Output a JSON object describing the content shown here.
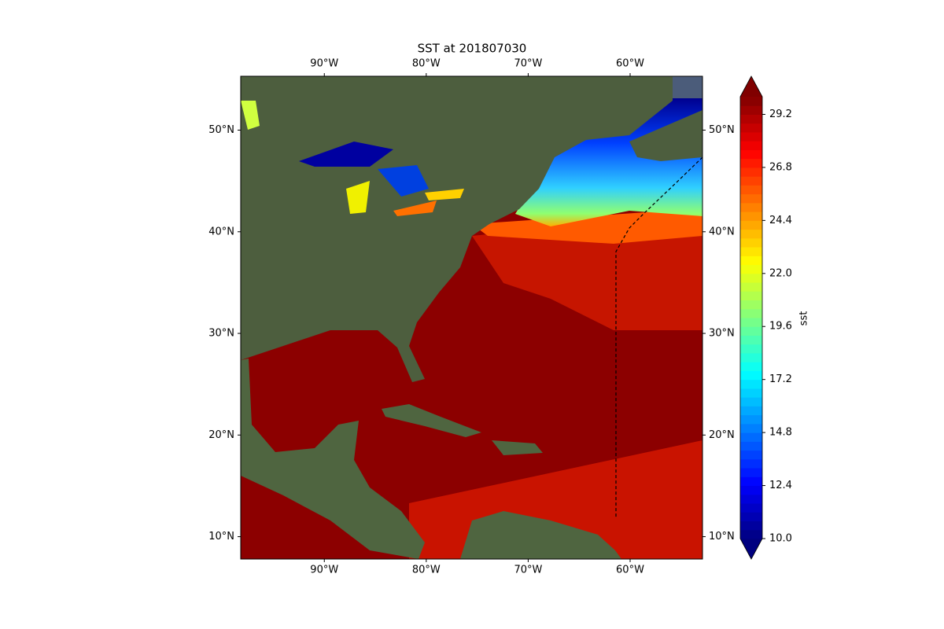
{
  "chart_data": {
    "type": "map",
    "title": "SST at 201807030",
    "xlim": [
      -98.2,
      -52.9
    ],
    "ylim": [
      7.8,
      55.3
    ],
    "xticks": [
      {
        "value": -90,
        "label": "90°W"
      },
      {
        "value": -80,
        "label": "80°W"
      },
      {
        "value": -70,
        "label": "70°W"
      },
      {
        "value": -60,
        "label": "60°W"
      }
    ],
    "yticks": [
      {
        "value": 10,
        "label": "10°N"
      },
      {
        "value": 20,
        "label": "20°N"
      },
      {
        "value": 30,
        "label": "30°N"
      },
      {
        "value": 40,
        "label": "40°N"
      },
      {
        "value": 50,
        "label": "50°N"
      }
    ],
    "colorbar": {
      "label": "sst",
      "clim": [
        10,
        30
      ],
      "ticks": [
        {
          "value": 10,
          "label": "10.0"
        },
        12.4,
        14.8,
        17.2,
        19.6,
        {
          "value": 22,
          "label": "22.0"
        },
        24.4,
        26.8,
        29.2
      ]
    }
  }
}
